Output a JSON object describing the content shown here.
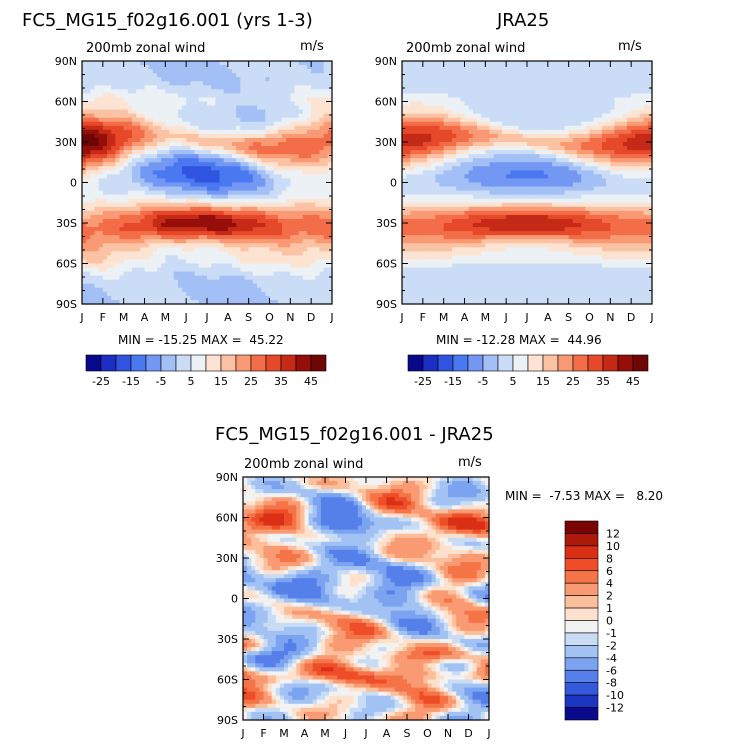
{
  "chart_data": [
    {
      "type": "heatmap",
      "title": "FC5_MG15_f02g16.001 (yrs 1-3)",
      "subtitle": "200mb zonal wind",
      "units": "m/s",
      "stats": "MIN = -15.25 MAX =  45.22",
      "x_ticks": [
        "J",
        "F",
        "M",
        "A",
        "M",
        "J",
        "J",
        "A",
        "S",
        "O",
        "N",
        "D",
        "J"
      ],
      "y_ticks": [
        "90N",
        "60N",
        "30N",
        "0",
        "30S",
        "60S",
        "90S"
      ],
      "field": "model",
      "colorbar": {
        "levels": [
          "-25",
          "-15",
          "-5",
          "5",
          "15",
          "25",
          "35",
          "45"
        ],
        "colors": [
          "#08088a",
          "#1c2ec4",
          "#2f55e0",
          "#4a78f0",
          "#7398f4",
          "#a2bff6",
          "#cbdcf6",
          "#ecf1f6",
          "#fde3d2",
          "#fbc3a4",
          "#f99a75",
          "#f26d48",
          "#e6482a",
          "#c52a16",
          "#960e0a",
          "#6e0606"
        ]
      }
    },
    {
      "type": "heatmap",
      "title": "JRA25",
      "subtitle": "200mb zonal wind",
      "units": "m/s",
      "stats": "MIN = -12.28 MAX =  44.96",
      "x_ticks": [
        "J",
        "F",
        "M",
        "A",
        "M",
        "J",
        "J",
        "A",
        "S",
        "O",
        "N",
        "D",
        "J"
      ],
      "y_ticks": [
        "90N",
        "60N",
        "30N",
        "0",
        "30S",
        "60S",
        "90S"
      ],
      "field": "obs",
      "colorbar": {
        "levels": [
          "-25",
          "-15",
          "-5",
          "5",
          "15",
          "25",
          "35",
          "45"
        ],
        "colors": [
          "#08088a",
          "#1c2ec4",
          "#2f55e0",
          "#4a78f0",
          "#7398f4",
          "#a2bff6",
          "#cbdcf6",
          "#ecf1f6",
          "#fde3d2",
          "#fbc3a4",
          "#f99a75",
          "#f26d48",
          "#e6482a",
          "#c52a16",
          "#960e0a",
          "#6e0606"
        ]
      }
    },
    {
      "type": "heatmap",
      "title": "FC5_MG15_f02g16.001 - JRA25",
      "subtitle": "200mb zonal wind",
      "units": "m/s",
      "stats": "MIN =  -7.53 MAX =   8.20",
      "x_ticks": [
        "J",
        "F",
        "M",
        "A",
        "M",
        "J",
        "J",
        "A",
        "S",
        "O",
        "N",
        "D",
        "J"
      ],
      "y_ticks": [
        "90N",
        "60N",
        "30N",
        "0",
        "30S",
        "60S",
        "90S"
      ],
      "field": "diff",
      "colorbar": {
        "levels": [
          "12",
          "10",
          "8",
          "6",
          "4",
          "2",
          "1",
          "0",
          "-1",
          "-2",
          "-4",
          "-6",
          "-8",
          "-10",
          "-12"
        ],
        "colors": [
          "#7a0403",
          "#ad1a0c",
          "#d93015",
          "#ef4d28",
          "#f47447",
          "#f99a72",
          "#fbbf9c",
          "#fde1cd",
          "#f2f2f2",
          "#c9dcf6",
          "#a2c2f4",
          "#7ba3f0",
          "#557fe9",
          "#3559dc",
          "#1c36c4",
          "#0a0a8c"
        ]
      }
    }
  ]
}
